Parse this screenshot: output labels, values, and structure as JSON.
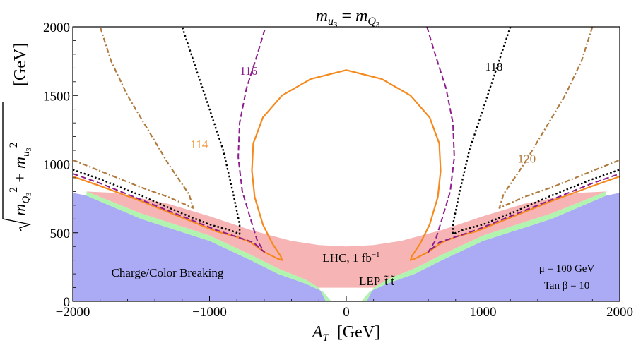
{
  "chart_data": {
    "type": "contour",
    "title": {
      "lhs_base": "m",
      "lhs_sub": "u",
      "lhs_subsub": "3",
      "eq": " = ",
      "rhs_base": "m",
      "rhs_sub": "Q",
      "rhs_subsub": "3"
    },
    "xlabel": {
      "sym": "A",
      "sub": "T",
      "unit": "  [GeV]"
    },
    "ylabel": {
      "unit": "[GeV]",
      "t1": "m",
      "t1sub": "Q",
      "t1subsub": "3",
      "sq": "2",
      "plus": " + ",
      "t2": "m",
      "t2sub": "u",
      "t2subsub": "3"
    },
    "xlim": [
      -2000,
      2000
    ],
    "ylim": [
      0,
      2000
    ],
    "xticks": [
      {
        "v": -2000,
        "label": "−2000"
      },
      {
        "v": -1000,
        "label": "−1000"
      },
      {
        "v": 0,
        "label": "0"
      },
      {
        "v": 1000,
        "label": "1000"
      },
      {
        "v": 2000,
        "label": "2000"
      }
    ],
    "yticks": [
      {
        "v": 0,
        "label": "0"
      },
      {
        "v": 500,
        "label": "500"
      },
      {
        "v": 1000,
        "label": "1000"
      },
      {
        "v": 1500,
        "label": "1500"
      },
      {
        "v": 2000,
        "label": "2000"
      }
    ],
    "colors": {
      "ccb": "#aaaaf5",
      "lep": "#b0f4b0",
      "lhc": "#f7b4b4",
      "c114": "#f5891d",
      "c116": "#8e1e8e",
      "c118": "#000000",
      "c120": "#b07a3e",
      "ccb_text": "#1c1ce0",
      "lhc_text": "#e01c1c",
      "lep_text": "#18b018"
    },
    "regions": {
      "ccb": {
        "label": "Charge/Color Breaking",
        "points": [
          [
            -2000,
            0
          ],
          [
            -2000,
            790
          ],
          [
            -1900,
            770
          ],
          [
            -1500,
            600
          ],
          [
            -1000,
            440
          ],
          [
            -700,
            300
          ],
          [
            -500,
            200
          ],
          [
            -300,
            130
          ],
          [
            -170,
            70
          ],
          [
            -110,
            0
          ],
          [
            110,
            0
          ],
          [
            170,
            70
          ],
          [
            300,
            130
          ],
          [
            500,
            200
          ],
          [
            700,
            300
          ],
          [
            1000,
            440
          ],
          [
            1500,
            600
          ],
          [
            1900,
            770
          ],
          [
            2000,
            790
          ],
          [
            2000,
            0
          ]
        ]
      },
      "lep": {
        "label_main": "LEP",
        "label_tt": "t̃ t̃",
        "points": [
          [
            -1900,
            800
          ],
          [
            -1500,
            640
          ],
          [
            -1000,
            480
          ],
          [
            -700,
            340
          ],
          [
            -500,
            240
          ],
          [
            -300,
            160
          ],
          [
            -200,
            100
          ],
          [
            -150,
            0
          ],
          [
            150,
            0
          ],
          [
            200,
            100
          ],
          [
            300,
            160
          ],
          [
            500,
            240
          ],
          [
            700,
            340
          ],
          [
            1000,
            480
          ],
          [
            1500,
            640
          ],
          [
            1900,
            800
          ],
          [
            1900,
            770
          ],
          [
            1500,
            600
          ],
          [
            1000,
            440
          ],
          [
            700,
            300
          ],
          [
            500,
            200
          ],
          [
            300,
            130
          ],
          [
            170,
            70
          ],
          [
            110,
            0
          ],
          [
            -110,
            0
          ],
          [
            -170,
            70
          ],
          [
            -300,
            130
          ],
          [
            -500,
            200
          ],
          [
            -700,
            300
          ],
          [
            -1000,
            440
          ],
          [
            -1500,
            600
          ],
          [
            -1900,
            770
          ]
        ]
      },
      "lhc": {
        "label_main": "LHC, 1 fb",
        "label_sup": "−1",
        "points": [
          [
            -1900,
            800
          ],
          [
            -1700,
            790
          ],
          [
            -1300,
            710
          ],
          [
            -1000,
            620
          ],
          [
            -700,
            520
          ],
          [
            -400,
            440
          ],
          [
            -200,
            410
          ],
          [
            0,
            400
          ],
          [
            200,
            410
          ],
          [
            400,
            440
          ],
          [
            700,
            520
          ],
          [
            1000,
            620
          ],
          [
            1300,
            710
          ],
          [
            1700,
            790
          ],
          [
            1900,
            800
          ],
          [
            1500,
            640
          ],
          [
            1000,
            480
          ],
          [
            700,
            340
          ],
          [
            500,
            240
          ],
          [
            300,
            160
          ],
          [
            200,
            100
          ],
          [
            -200,
            100
          ],
          [
            -300,
            160
          ],
          [
            -500,
            240
          ],
          [
            -700,
            340
          ],
          [
            -1000,
            480
          ],
          [
            -1500,
            640
          ]
        ]
      }
    },
    "contours": [
      {
        "name": "114",
        "label": "114",
        "label_at": [
          -1075,
          1115
        ],
        "dash": "",
        "width": 2.2,
        "color_key": "c114",
        "paths": [
          [
            [
              -2000,
              910
            ],
            [
              -1800,
              840
            ],
            [
              -1500,
              730
            ],
            [
              -1200,
              610
            ],
            [
              -950,
              510
            ],
            [
              -800,
              470
            ],
            [
              -700,
              430
            ],
            [
              -600,
              360
            ],
            [
              -500,
              310
            ],
            [
              -470,
              300
            ],
            [
              -480,
              330
            ],
            [
              -540,
              420
            ],
            [
              -610,
              560
            ],
            [
              -670,
              760
            ],
            [
              -690,
              950
            ],
            [
              -680,
              1150
            ],
            [
              -610,
              1340
            ],
            [
              -470,
              1500
            ],
            [
              -260,
              1620
            ],
            [
              0,
              1685
            ],
            [
              260,
              1620
            ],
            [
              470,
              1500
            ],
            [
              610,
              1340
            ],
            [
              680,
              1150
            ],
            [
              690,
              950
            ],
            [
              670,
              760
            ],
            [
              610,
              560
            ],
            [
              540,
              420
            ],
            [
              480,
              330
            ],
            [
              470,
              300
            ],
            [
              500,
              310
            ],
            [
              600,
              360
            ],
            [
              700,
              430
            ],
            [
              800,
              470
            ],
            [
              950,
              510
            ],
            [
              1200,
              610
            ],
            [
              1500,
              730
            ],
            [
              1800,
              840
            ],
            [
              2000,
              910
            ]
          ]
        ]
      },
      {
        "name": "116",
        "label": "116",
        "label_at": [
          -715,
          1650
        ],
        "dash": "8 4",
        "width": 2.0,
        "color_key": "c116",
        "paths": [
          [
            [
              -2000,
              930
            ],
            [
              -1800,
              860
            ],
            [
              -1500,
              740
            ],
            [
              -1200,
              620
            ],
            [
              -950,
              520
            ],
            [
              -800,
              470
            ],
            [
              -680,
              430
            ],
            [
              -600,
              360
            ],
            [
              -650,
              440
            ],
            [
              -700,
              600
            ],
            [
              -760,
              800
            ],
            [
              -790,
              1050
            ],
            [
              -780,
              1300
            ],
            [
              -730,
              1550
            ],
            [
              -650,
              1800
            ],
            [
              -590,
              2000
            ]
          ],
          [
            [
              590,
              2000
            ],
            [
              650,
              1800
            ],
            [
              730,
              1550
            ],
            [
              780,
              1300
            ],
            [
              790,
              1050
            ],
            [
              760,
              800
            ],
            [
              700,
              600
            ],
            [
              650,
              440
            ],
            [
              600,
              360
            ],
            [
              680,
              430
            ],
            [
              800,
              470
            ],
            [
              950,
              520
            ],
            [
              1200,
              620
            ],
            [
              1500,
              740
            ],
            [
              1800,
              860
            ],
            [
              2000,
              930
            ]
          ]
        ]
      },
      {
        "name": "118",
        "label": "118",
        "label_at": [
          1080,
          1680
        ],
        "dash": "2.5 3",
        "width": 2.4,
        "color_key": "c118",
        "paths": [
          [
            [
              -2000,
              960
            ],
            [
              -1800,
              890
            ],
            [
              -1500,
              770
            ],
            [
              -1200,
              640
            ],
            [
              -1000,
              560
            ],
            [
              -850,
              520
            ],
            [
              -780,
              490
            ],
            [
              -780,
              560
            ],
            [
              -830,
              800
            ],
            [
              -900,
              1100
            ],
            [
              -1000,
              1400
            ],
            [
              -1100,
              1700
            ],
            [
              -1200,
              2000
            ]
          ],
          [
            [
              1200,
              2000
            ],
            [
              1100,
              1700
            ],
            [
              1000,
              1400
            ],
            [
              900,
              1100
            ],
            [
              830,
              800
            ],
            [
              780,
              560
            ],
            [
              780,
              490
            ],
            [
              850,
              520
            ],
            [
              1000,
              560
            ],
            [
              1200,
              640
            ],
            [
              1500,
              770
            ],
            [
              1800,
              890
            ],
            [
              2000,
              960
            ]
          ]
        ]
      },
      {
        "name": "120",
        "label": "120",
        "label_at": [
          1320,
          1010
        ],
        "dash": "7 3 2 3",
        "width": 2.2,
        "color_key": "c120",
        "paths": [
          [
            [
              -2000,
              1030
            ],
            [
              -1800,
              950
            ],
            [
              -1500,
              830
            ],
            [
              -1300,
              760
            ],
            [
              -1120,
              680
            ],
            [
              -1150,
              780
            ],
            [
              -1300,
              1000
            ],
            [
              -1450,
              1250
            ],
            [
              -1600,
              1500
            ],
            [
              -1720,
              1750
            ],
            [
              -1800,
              2000
            ]
          ],
          [
            [
              1800,
              2000
            ],
            [
              1720,
              1750
            ],
            [
              1600,
              1500
            ],
            [
              1450,
              1250
            ],
            [
              1300,
              1000
            ],
            [
              1150,
              780
            ],
            [
              1120,
              680
            ],
            [
              1300,
              760
            ],
            [
              1500,
              830
            ],
            [
              1800,
              950
            ],
            [
              2000,
              1030
            ]
          ]
        ]
      }
    ],
    "annotations": {
      "mu": "μ = 100 GeV",
      "tanb": "Tan β = 10"
    }
  }
}
